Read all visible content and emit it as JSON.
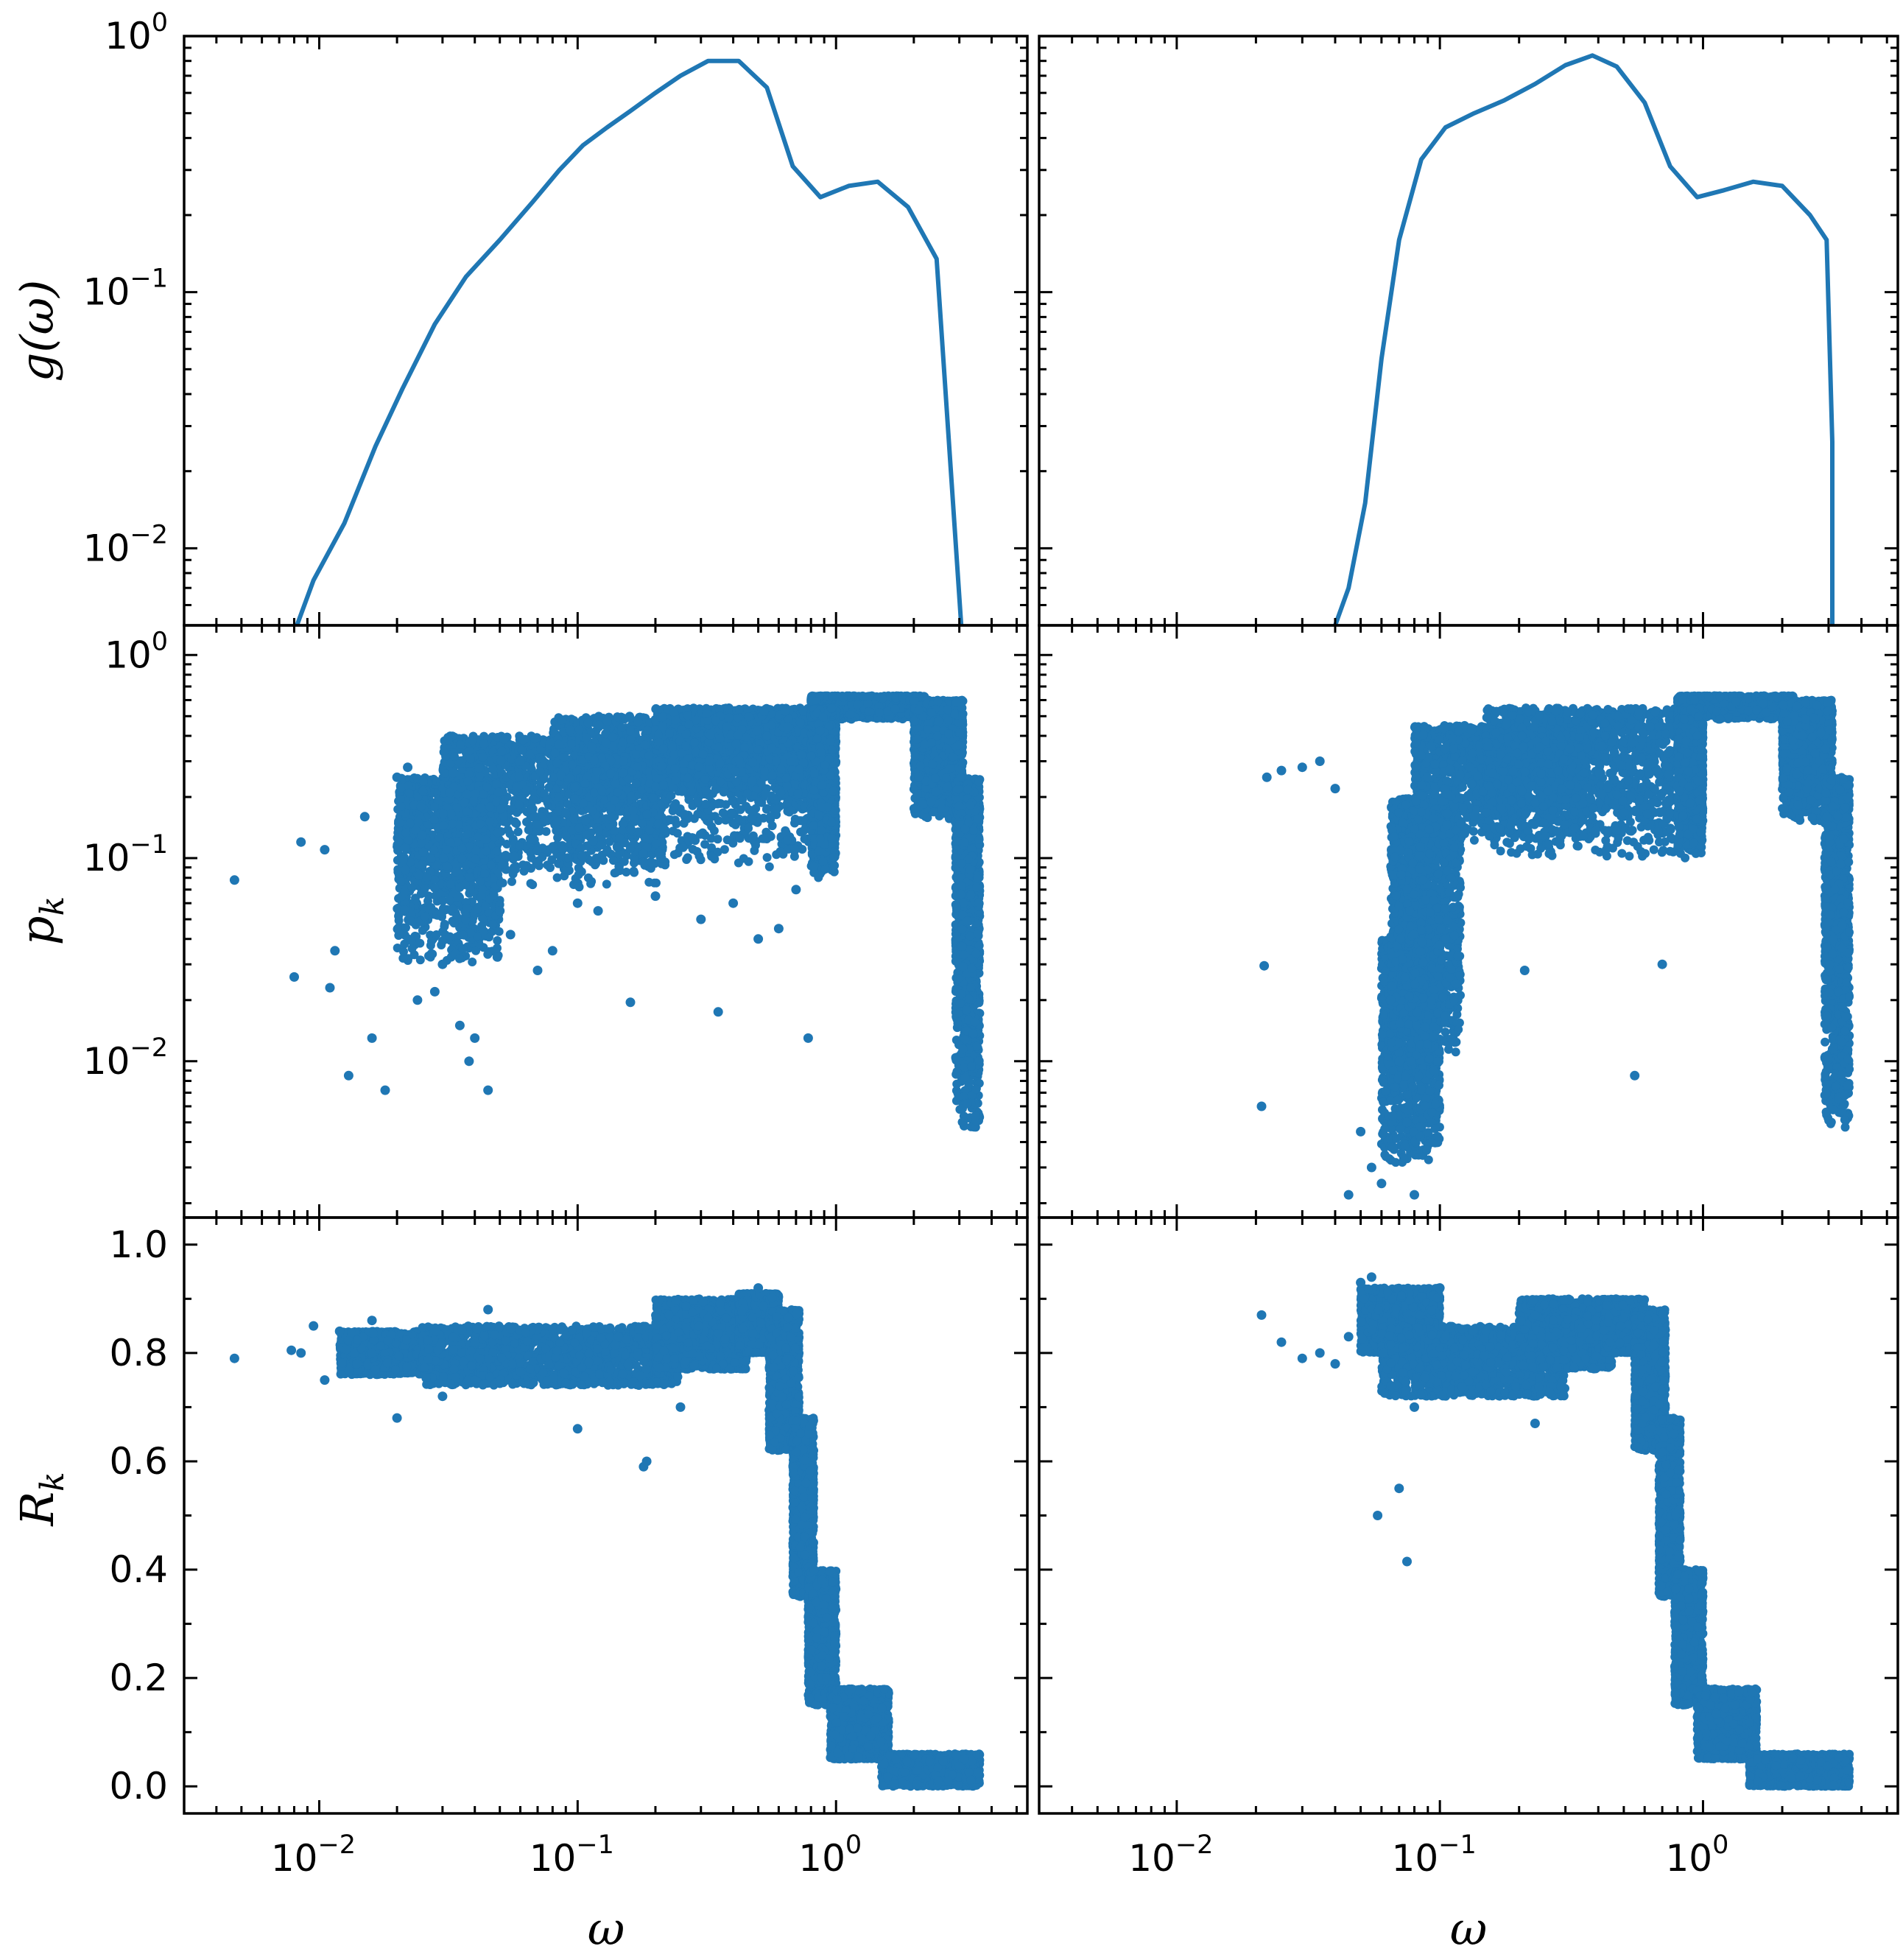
{
  "colors": {
    "series": "#1f77b4",
    "axes": "#000000",
    "background": "#ffffff"
  },
  "chart_data": [
    {
      "type": "line",
      "panel": "top-left",
      "ylabel": "g(ω)",
      "x_scale": "log",
      "y_scale": "log",
      "xlim": [
        0.003,
        5.5
      ],
      "ylim": [
        0.005,
        1.0
      ],
      "yticks": [
        {
          "base": "10",
          "exp": "0",
          "value": 1.0
        },
        {
          "base": "10",
          "exp": "−1",
          "value": 0.1
        },
        {
          "base": "10",
          "exp": "−2",
          "value": 0.01
        }
      ],
      "x": [
        0.0082,
        0.0095,
        0.0125,
        0.0165,
        0.021,
        0.028,
        0.037,
        0.05,
        0.067,
        0.085,
        0.105,
        0.13,
        0.16,
        0.2,
        0.25,
        0.32,
        0.42,
        0.54,
        0.68,
        0.87,
        1.12,
        1.45,
        1.9,
        2.45,
        3.05
      ],
      "y": [
        0.005,
        0.0075,
        0.0125,
        0.025,
        0.042,
        0.075,
        0.115,
        0.16,
        0.225,
        0.3,
        0.375,
        0.44,
        0.51,
        0.6,
        0.7,
        0.8,
        0.8,
        0.63,
        0.31,
        0.235,
        0.26,
        0.27,
        0.215,
        0.135,
        0.005
      ]
    },
    {
      "type": "line",
      "panel": "top-right",
      "x_scale": "log",
      "y_scale": "log",
      "xlim": [
        0.003,
        5.5
      ],
      "ylim": [
        0.005,
        1.0
      ],
      "x": [
        0.04,
        0.045,
        0.052,
        0.06,
        0.07,
        0.085,
        0.105,
        0.135,
        0.175,
        0.23,
        0.3,
        0.38,
        0.47,
        0.6,
        0.75,
        0.95,
        1.2,
        1.55,
        2.0,
        2.55,
        2.95,
        3.1,
        3.1
      ],
      "y": [
        0.005,
        0.007,
        0.015,
        0.055,
        0.16,
        0.33,
        0.44,
        0.5,
        0.56,
        0.65,
        0.77,
        0.84,
        0.76,
        0.55,
        0.31,
        0.235,
        0.25,
        0.27,
        0.26,
        0.2,
        0.16,
        0.026,
        0.005
      ]
    },
    {
      "type": "scatter",
      "panel": "middle-left",
      "ylabel": "p_k",
      "x_scale": "log",
      "y_scale": "log",
      "xlim": [
        0.003,
        5.5
      ],
      "ylim": [
        0.0017,
        1.4
      ],
      "yticks": [
        {
          "base": "10",
          "exp": "0",
          "value": 1.0
        },
        {
          "base": "10",
          "exp": "−1",
          "value": 0.1
        },
        {
          "base": "10",
          "exp": "−2",
          "value": 0.01
        }
      ],
      "points": [
        [
          0.0047,
          0.078
        ],
        [
          0.008,
          0.026
        ],
        [
          0.0085,
          0.12
        ],
        [
          0.0105,
          0.11
        ],
        [
          0.011,
          0.023
        ],
        [
          0.0115,
          0.035
        ],
        [
          0.013,
          0.0085
        ],
        [
          0.015,
          0.16
        ],
        [
          0.016,
          0.013
        ],
        [
          0.018,
          0.0072
        ],
        [
          0.02,
          0.25
        ],
        [
          0.022,
          0.28
        ],
        [
          0.024,
          0.02
        ],
        [
          0.025,
          0.13
        ],
        [
          0.028,
          0.022
        ],
        [
          0.03,
          0.03
        ],
        [
          0.032,
          0.21
        ],
        [
          0.035,
          0.015
        ],
        [
          0.038,
          0.01
        ],
        [
          0.04,
          0.013
        ],
        [
          0.045,
          0.0072
        ],
        [
          0.05,
          0.055
        ],
        [
          0.055,
          0.042
        ],
        [
          0.06,
          0.3
        ],
        [
          0.07,
          0.028
        ],
        [
          0.08,
          0.035
        ],
        [
          0.1,
          0.06
        ],
        [
          0.12,
          0.055
        ],
        [
          0.16,
          0.0195
        ],
        [
          0.2,
          0.065
        ],
        [
          0.3,
          0.05
        ],
        [
          0.35,
          0.0175
        ],
        [
          0.4,
          0.06
        ],
        [
          0.5,
          0.04
        ],
        [
          0.6,
          0.045
        ],
        [
          0.7,
          0.07
        ],
        [
          0.78,
          0.013
        ]
      ],
      "clouds": [
        {
          "x": [
            0.02,
            0.05
          ],
          "y": [
            0.03,
            0.25
          ]
        },
        {
          "x": [
            0.03,
            0.22
          ],
          "y": [
            0.07,
            0.4
          ]
        },
        {
          "x": [
            0.08,
            0.8
          ],
          "y": [
            0.09,
            0.5
          ]
        },
        {
          "x": [
            0.2,
            0.78
          ],
          "y": [
            0.2,
            0.55
          ]
        },
        {
          "x": [
            0.8,
            2.2
          ],
          "y": [
            0.48,
            0.63
          ]
        },
        {
          "x": [
            0.8,
            1.0
          ],
          "y": [
            0.08,
            0.55
          ]
        },
        {
          "x": [
            2.0,
            3.1
          ],
          "y": [
            0.15,
            0.6
          ]
        },
        {
          "x": [
            2.9,
            3.6
          ],
          "y": [
            0.0045,
            0.25
          ]
        }
      ]
    },
    {
      "type": "scatter",
      "panel": "middle-right",
      "x_scale": "log",
      "y_scale": "log",
      "xlim": [
        0.003,
        5.5
      ],
      "ylim": [
        0.0017,
        1.4
      ],
      "points": [
        [
          0.0215,
          0.0295
        ],
        [
          0.021,
          0.006
        ],
        [
          0.022,
          0.25
        ],
        [
          0.025,
          0.27
        ],
        [
          0.03,
          0.28
        ],
        [
          0.035,
          0.3
        ],
        [
          0.04,
          0.22
        ],
        [
          0.045,
          0.0022
        ],
        [
          0.05,
          0.0045
        ],
        [
          0.055,
          0.003
        ],
        [
          0.06,
          0.0025
        ],
        [
          0.065,
          0.02
        ],
        [
          0.07,
          0.01
        ],
        [
          0.075,
          0.005
        ],
        [
          0.08,
          0.0022
        ],
        [
          0.21,
          0.028
        ],
        [
          0.55,
          0.0085
        ],
        [
          0.7,
          0.03
        ]
      ],
      "clouds": [
        {
          "x": [
            0.06,
            0.1
          ],
          "y": [
            0.003,
            0.04
          ]
        },
        {
          "x": [
            0.065,
            0.12
          ],
          "y": [
            0.01,
            0.2
          ]
        },
        {
          "x": [
            0.08,
            0.35
          ],
          "y": [
            0.12,
            0.45
          ]
        },
        {
          "x": [
            0.15,
            0.78
          ],
          "y": [
            0.1,
            0.55
          ]
        },
        {
          "x": [
            0.8,
            2.2
          ],
          "y": [
            0.48,
            0.63
          ]
        },
        {
          "x": [
            0.8,
            1.0
          ],
          "y": [
            0.1,
            0.55
          ]
        },
        {
          "x": [
            2.0,
            3.1
          ],
          "y": [
            0.15,
            0.6
          ]
        },
        {
          "x": [
            2.9,
            3.6
          ],
          "y": [
            0.0045,
            0.25
          ]
        }
      ]
    },
    {
      "type": "scatter",
      "panel": "bottom-left",
      "ylabel": "R_k",
      "xlabel": "ω",
      "x_scale": "log",
      "y_scale": "linear",
      "xlim": [
        0.003,
        5.5
      ],
      "ylim": [
        -0.05,
        1.05
      ],
      "yticks": [
        "0.0",
        "0.2",
        "0.4",
        "0.6",
        "0.8",
        "1.0"
      ],
      "xticks": [
        {
          "base": "10",
          "exp": "−2",
          "value": 0.01
        },
        {
          "base": "10",
          "exp": "−1",
          "value": 0.1
        },
        {
          "base": "10",
          "exp": "0",
          "value": 1.0
        }
      ],
      "points": [
        [
          0.0047,
          0.79
        ],
        [
          0.0078,
          0.805
        ],
        [
          0.0085,
          0.8
        ],
        [
          0.0095,
          0.85
        ],
        [
          0.0105,
          0.75
        ],
        [
          0.012,
          0.84
        ],
        [
          0.014,
          0.78
        ],
        [
          0.016,
          0.86
        ],
        [
          0.02,
          0.68
        ],
        [
          0.03,
          0.72
        ],
        [
          0.045,
          0.88
        ],
        [
          0.1,
          0.66
        ],
        [
          0.18,
          0.59
        ],
        [
          0.185,
          0.6
        ],
        [
          0.25,
          0.7
        ],
        [
          0.5,
          0.92
        ]
      ],
      "clouds": [
        {
          "x": [
            0.012,
            0.03
          ],
          "y": [
            0.76,
            0.84
          ]
        },
        {
          "x": [
            0.025,
            0.25
          ],
          "y": [
            0.74,
            0.85
          ]
        },
        {
          "x": [
            0.2,
            0.45
          ],
          "y": [
            0.77,
            0.9
          ]
        },
        {
          "x": [
            0.42,
            0.6
          ],
          "y": [
            0.8,
            0.91
          ]
        },
        {
          "x": [
            0.55,
            0.72
          ],
          "y": [
            0.62,
            0.88
          ]
        },
        {
          "x": [
            0.68,
            0.82
          ],
          "y": [
            0.35,
            0.68
          ]
        },
        {
          "x": [
            0.78,
            1.0
          ],
          "y": [
            0.15,
            0.4
          ]
        },
        {
          "x": [
            0.95,
            1.6
          ],
          "y": [
            0.05,
            0.18
          ]
        },
        {
          "x": [
            1.5,
            3.6
          ],
          "y": [
            0.0,
            0.06
          ]
        }
      ]
    },
    {
      "type": "scatter",
      "panel": "bottom-right",
      "xlabel": "ω",
      "x_scale": "log",
      "y_scale": "linear",
      "xlim": [
        0.003,
        5.5
      ],
      "ylim": [
        -0.05,
        1.05
      ],
      "xticks": [
        {
          "base": "10",
          "exp": "−2",
          "value": 0.01
        },
        {
          "base": "10",
          "exp": "−1",
          "value": 0.1
        },
        {
          "base": "10",
          "exp": "0",
          "value": 1.0
        }
      ],
      "points": [
        [
          0.021,
          0.87
        ],
        [
          0.025,
          0.82
        ],
        [
          0.03,
          0.79
        ],
        [
          0.035,
          0.8
        ],
        [
          0.04,
          0.78
        ],
        [
          0.045,
          0.83
        ],
        [
          0.05,
          0.93
        ],
        [
          0.055,
          0.94
        ],
        [
          0.058,
          0.5
        ],
        [
          0.07,
          0.55
        ],
        [
          0.075,
          0.415
        ],
        [
          0.08,
          0.7
        ],
        [
          0.1,
          0.92
        ],
        [
          0.23,
          0.67
        ]
      ],
      "clouds": [
        {
          "x": [
            0.05,
            0.1
          ],
          "y": [
            0.8,
            0.92
          ]
        },
        {
          "x": [
            0.06,
            0.3
          ],
          "y": [
            0.72,
            0.85
          ]
        },
        {
          "x": [
            0.2,
            0.45
          ],
          "y": [
            0.77,
            0.9
          ]
        },
        {
          "x": [
            0.42,
            0.6
          ],
          "y": [
            0.8,
            0.9
          ]
        },
        {
          "x": [
            0.55,
            0.72
          ],
          "y": [
            0.62,
            0.88
          ]
        },
        {
          "x": [
            0.68,
            0.82
          ],
          "y": [
            0.35,
            0.68
          ]
        },
        {
          "x": [
            0.78,
            1.0
          ],
          "y": [
            0.15,
            0.4
          ]
        },
        {
          "x": [
            0.95,
            1.6
          ],
          "y": [
            0.05,
            0.18
          ]
        },
        {
          "x": [
            1.5,
            3.6
          ],
          "y": [
            0.0,
            0.06
          ]
        }
      ]
    }
  ]
}
